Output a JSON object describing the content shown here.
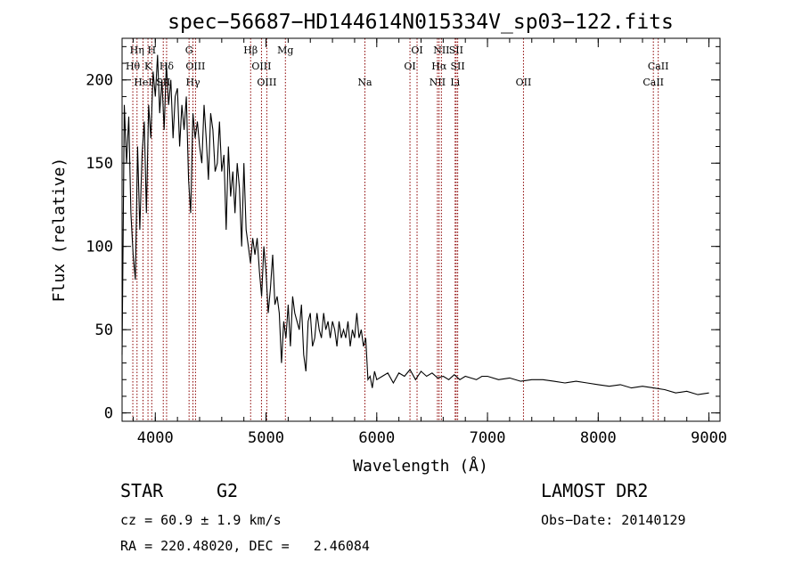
{
  "chart_data": {
    "type": "line",
    "title": "spec−56687−HD144614N015334V_sp03−122.fits",
    "xlabel": "Wavelength (Å)",
    "ylabel": "Flux (relative)",
    "xlim": [
      3700,
      9100
    ],
    "ylim": [
      -5,
      225
    ],
    "xticks": [
      4000,
      5000,
      6000,
      7000,
      8000,
      9000
    ],
    "yticks": [
      0,
      50,
      100,
      150,
      200
    ],
    "grid": false,
    "series": [
      {
        "x": [
          3700,
          3720,
          3740,
          3760,
          3780,
          3800,
          3820,
          3840,
          3860,
          3880,
          3900,
          3920,
          3940,
          3960,
          3980,
          4000,
          4020,
          4040,
          4060,
          4080,
          4100,
          4120,
          4140,
          4160,
          4180,
          4200,
          4220,
          4240,
          4260,
          4280,
          4300,
          4320,
          4340,
          4360,
          4380,
          4400,
          4420,
          4440,
          4460,
          4480,
          4500,
          4520,
          4540,
          4560,
          4580,
          4600,
          4620,
          4640,
          4660,
          4680,
          4700,
          4720,
          4740,
          4760,
          4780,
          4800,
          4820,
          4840,
          4860,
          4880,
          4900,
          4920,
          4940,
          4960,
          4980,
          5000,
          5020,
          5040,
          5060,
          5080,
          5100,
          5120,
          5140,
          5160,
          5180,
          5200,
          5220,
          5240,
          5260,
          5280,
          5300,
          5320,
          5340,
          5360,
          5380,
          5400,
          5420,
          5440,
          5460,
          5480,
          5500,
          5520,
          5540,
          5560,
          5580,
          5600,
          5620,
          5640,
          5660,
          5680,
          5700,
          5720,
          5740,
          5760,
          5780,
          5800,
          5820,
          5840,
          5860,
          5880,
          5900,
          5920,
          5940,
          5960,
          5980,
          6000,
          6050,
          6100,
          6150,
          6200,
          6250,
          6300,
          6350,
          6400,
          6450,
          6500,
          6550,
          6600,
          6650,
          6700,
          6750,
          6800,
          6850,
          6900,
          6950,
          7000,
          7100,
          7200,
          7300,
          7400,
          7500,
          7600,
          7700,
          7800,
          7900,
          8000,
          8100,
          8200,
          8300,
          8400,
          8500,
          8600,
          8700,
          8800,
          8900,
          9000
        ],
        "y": [
          35,
          185,
          150,
          178,
          120,
          95,
          80,
          160,
          110,
          155,
          175,
          120,
          185,
          165,
          205,
          190,
          215,
          180,
          200,
          170,
          210,
          185,
          200,
          165,
          190,
          195,
          160,
          185,
          170,
          190,
          140,
          120,
          180,
          165,
          175,
          160,
          150,
          185,
          165,
          140,
          180,
          170,
          145,
          150,
          175,
          145,
          155,
          110,
          160,
          130,
          145,
          120,
          150,
          135,
          100,
          150,
          110,
          100,
          90,
          105,
          95,
          105,
          85,
          70,
          100,
          85,
          60,
          75,
          95,
          65,
          70,
          60,
          30,
          55,
          45,
          65,
          40,
          70,
          60,
          55,
          50,
          65,
          35,
          25,
          55,
          60,
          40,
          45,
          60,
          50,
          45,
          60,
          50,
          55,
          45,
          55,
          50,
          40,
          55,
          45,
          50,
          45,
          55,
          40,
          50,
          45,
          60,
          45,
          50,
          40,
          45,
          20,
          22,
          15,
          25,
          20,
          22,
          24,
          18,
          24,
          22,
          26,
          20,
          25,
          22,
          24,
          21,
          22,
          20,
          23,
          20,
          22,
          21,
          20,
          22,
          22,
          20,
          21,
          19,
          20,
          20,
          19,
          18,
          19,
          18,
          17,
          16,
          17,
          15,
          16,
          15,
          14,
          12,
          13,
          11,
          12
        ]
      }
    ],
    "annotations": [
      {
        "label": "Hη",
        "x": 3835,
        "row": 1
      },
      {
        "label": "H",
        "x": 3968,
        "row": 1
      },
      {
        "label": "G",
        "x": 4305,
        "row": 1
      },
      {
        "label": "Hβ",
        "x": 4861,
        "row": 1
      },
      {
        "label": "Mg",
        "x": 5175,
        "row": 1
      },
      {
        "label": "OI",
        "x": 6364,
        "row": 1
      },
      {
        "label": "NII",
        "x": 6584,
        "row": 1
      },
      {
        "label": "SII",
        "x": 6717,
        "row": 1
      },
      {
        "label": "Hθ",
        "x": 3797,
        "row": 2
      },
      {
        "label": "K",
        "x": 3934,
        "row": 2
      },
      {
        "label": "Hδ",
        "x": 4102,
        "row": 2
      },
      {
        "label": "OIII",
        "x": 4363,
        "row": 2
      },
      {
        "label": "OIII",
        "x": 4959,
        "row": 2
      },
      {
        "label": "OI",
        "x": 6300,
        "row": 2
      },
      {
        "label": "Hα",
        "x": 6563,
        "row": 2
      },
      {
        "label": "SII",
        "x": 6731,
        "row": 2
      },
      {
        "label": "CaII",
        "x": 8542,
        "row": 2
      },
      {
        "label": "HeI",
        "x": 3889,
        "row": 3
      },
      {
        "label": "SII",
        "x": 4072,
        "row": 3
      },
      {
        "label": "Hγ",
        "x": 4340,
        "row": 3
      },
      {
        "label": "OIII",
        "x": 5007,
        "row": 3
      },
      {
        "label": "Na",
        "x": 5893,
        "row": 3
      },
      {
        "label": "NII",
        "x": 6548,
        "row": 3
      },
      {
        "label": "Li",
        "x": 6708,
        "row": 3
      },
      {
        "label": "OII",
        "x": 7325,
        "row": 3
      },
      {
        "label": "CaII",
        "x": 8498,
        "row": 3
      }
    ]
  },
  "info": {
    "object_class": "STAR",
    "subclass": "G2",
    "survey": "LAMOST DR2",
    "velocity": "cz = 60.9 ± 1.9 km/s",
    "obs_date": "Obs−Date: 20140129",
    "coords": "RA = 220.48020, DEC =   2.46084"
  },
  "colors": {
    "spectrum": "#000000",
    "line_marker": "#8b0000",
    "axes": "#000000"
  }
}
